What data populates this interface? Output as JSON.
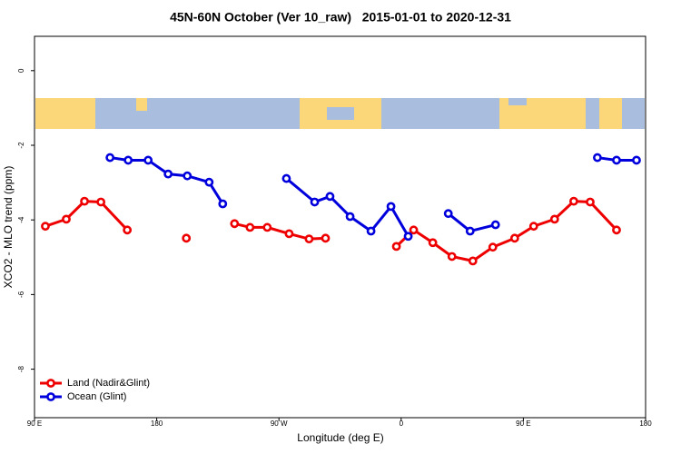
{
  "chart_data": {
    "type": "line",
    "title": "45N-60N October (Ver 10_raw)   2015-01-01 to 2020-12-31",
    "x_label": "Longitude (deg E)",
    "y_label": "XCO2 - MLO trend (ppm)",
    "xlim": [
      90,
      540
    ],
    "xticks": [
      {
        "value": 90,
        "label": "90 E"
      },
      180,
      {
        "value": 270,
        "label": "90 W"
      },
      {
        "value": 360,
        "label": "0"
      },
      {
        "value": 450,
        "label": "90 E"
      },
      {
        "value": 540,
        "label": "180"
      }
    ],
    "ylim": [
      -9.3,
      0.92
    ],
    "yticks": [
      0,
      -2,
      -4,
      -6,
      -8
    ],
    "legend": "bottom-left",
    "series": [
      {
        "name": "Land (Nadir&Glint)",
        "color": "#ee0000",
        "x": [
          98,
          113.4,
          126.8,
          138.9,
          158.3,
          180,
          201.8,
          220,
          237.3,
          248.7,
          261.4,
          277.5,
          292.2,
          304.3,
          330,
          356.5,
          369.2,
          383.3,
          397.4,
          412.8,
          427.5,
          443.6,
          457.6,
          473,
          487.1,
          499.2,
          518.6
        ],
        "values": [
          -4.17,
          -3.98,
          -3.5,
          -3.52,
          -4.27,
          null,
          -4.49,
          null,
          -4.1,
          -4.2,
          -4.2,
          -4.37,
          -4.51,
          -4.49,
          null,
          -4.71,
          -4.27,
          -4.61,
          -4.98,
          -5.1,
          -4.73,
          -4.49,
          -4.17,
          -3.98,
          -3.5,
          -3.52,
          -4.27
        ]
      },
      {
        "name": "Ocean (Glint)",
        "color": "#0000dd",
        "x": [
          145.6,
          159,
          173.7,
          188.4,
          202.5,
          218.6,
          228.6,
          252,
          275.5,
          296.3,
          307.6,
          322.4,
          337.8,
          352.5,
          365.2,
          380,
          394.7,
          410.8,
          429.5,
          467,
          504.5,
          518.6,
          533.3
        ],
        "values": [
          -2.33,
          -2.4,
          -2.4,
          -2.77,
          -2.82,
          -2.99,
          -3.57,
          null,
          -2.89,
          -3.52,
          -3.37,
          -3.91,
          -4.3,
          -3.64,
          -4.44,
          null,
          -3.83,
          -4.3,
          -4.13,
          null,
          -2.33,
          -2.4,
          -2.4
        ]
      }
    ]
  }
}
